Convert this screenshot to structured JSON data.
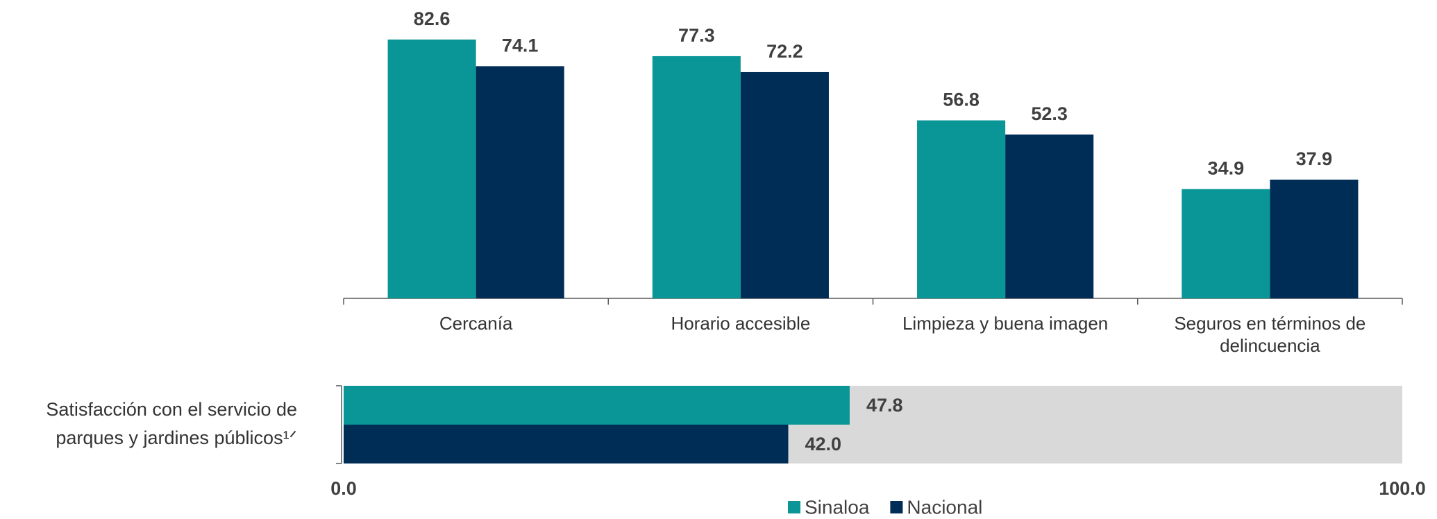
{
  "chart_data": [
    {
      "type": "bar",
      "categories": [
        "Cercanía",
        "Horario accesible",
        "Limpieza y buena imagen",
        "Seguros en términos de delincuencia"
      ],
      "series": [
        {
          "name": "Sinaloa",
          "color": "#0a9696",
          "values": [
            82.6,
            77.3,
            56.8,
            34.9
          ]
        },
        {
          "name": "Nacional",
          "color": "#002d55",
          "values": [
            74.1,
            72.2,
            52.3,
            37.9
          ]
        }
      ],
      "ylim": [
        0,
        95
      ]
    },
    {
      "type": "hbar",
      "categories": [
        "Satisfacción con el servicio de parques y jardines públicos¹ᐟ"
      ],
      "series": [
        {
          "name": "Sinaloa",
          "color": "#0a9696",
          "values": [
            47.8
          ],
          "value_labels": [
            "47.8"
          ]
        },
        {
          "name": "Nacional",
          "color": "#002d55",
          "values": [
            42.0
          ],
          "value_labels": [
            "42.0"
          ]
        }
      ],
      "xlim": [
        0,
        100
      ],
      "xticks": [
        {
          "value": 0,
          "label": "0.0"
        },
        {
          "value": 100,
          "label": "100.0"
        }
      ],
      "legend": "bottom"
    }
  ]
}
